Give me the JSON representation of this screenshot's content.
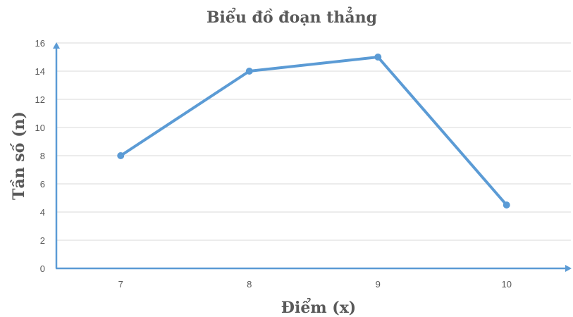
{
  "chart_data": {
    "type": "line",
    "title": "Biểu đồ đoạn thẳng",
    "xlabel": "Điểm (x)",
    "ylabel": "Tần số (n)",
    "categories": [
      "7",
      "8",
      "9",
      "10"
    ],
    "series": [
      {
        "values": [
          8,
          14,
          15,
          4.5
        ]
      }
    ],
    "ylim": [
      0,
      16
    ],
    "yticks": [
      "0",
      "2",
      "4",
      "6",
      "8",
      "10",
      "12",
      "14",
      "16"
    ],
    "grid": true,
    "legend": "none",
    "colors": {
      "series": "#5b9bd5",
      "axis": "#5b9bd5",
      "grid": "#d9d9d9",
      "text": "#595959"
    }
  }
}
